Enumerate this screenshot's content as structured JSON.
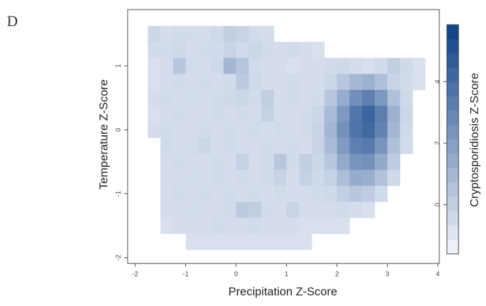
{
  "chart_data": {
    "type": "heatmap",
    "panel_label": "D",
    "x_label": "Precipitation Z-Score",
    "y_label": "Temperature Z-Score",
    "colorbar_label": "Cryptosporidiosis Z-Score",
    "xlim": [
      -2.15,
      4.03
    ],
    "ylim": [
      -2.09,
      1.88
    ],
    "xticks": [
      -2,
      -1,
      0,
      1,
      2,
      3,
      4
    ],
    "yticks": [
      -2,
      -1,
      0,
      1
    ],
    "zlim": [
      -1.6,
      5.85
    ],
    "zticks": [
      0,
      2,
      4
    ],
    "colors": [
      "#f4f6fc",
      "#0b3f86"
    ],
    "cell_size": 0.25,
    "x": [
      -1.625,
      -1.375,
      -1.125,
      -0.875,
      -0.625,
      -0.375,
      -0.125,
      0.125,
      0.375,
      0.625,
      0.875,
      1.125,
      1.375,
      1.625,
      1.875,
      2.125,
      2.375,
      2.625,
      2.875,
      3.125,
      3.375,
      3.625
    ],
    "y": [
      1.5,
      1.25,
      1.0,
      0.75,
      0.5,
      0.25,
      0.0,
      -0.25,
      -0.5,
      -0.75,
      -1.0,
      -1.25,
      -1.5,
      -1.75
    ],
    "z": [
      [
        -0.3,
        -0.6,
        -0.5,
        -0.5,
        -0.6,
        -0.4,
        0.0,
        -0.2,
        -0.5,
        -0.6,
        null,
        null,
        null,
        null,
        null,
        null,
        null,
        null,
        null,
        null,
        null,
        null
      ],
      [
        -0.5,
        -0.5,
        -0.4,
        -0.6,
        -0.5,
        -0.5,
        -0.2,
        -0.5,
        -0.3,
        -0.5,
        -0.6,
        -0.5,
        -0.6,
        -0.7,
        null,
        null,
        null,
        null,
        null,
        null,
        null,
        null
      ],
      [
        -0.7,
        -0.6,
        0.3,
        -0.5,
        -0.6,
        -0.4,
        1.0,
        0.4,
        -0.5,
        -0.6,
        -0.6,
        -0.7,
        -0.6,
        -0.6,
        -0.5,
        -0.4,
        -0.6,
        -0.7,
        -0.5,
        0.0,
        -0.4,
        -0.7
      ],
      [
        -0.7,
        -0.6,
        -0.5,
        -0.6,
        -0.5,
        -0.6,
        -0.5,
        0.2,
        -0.4,
        -0.6,
        -0.6,
        -0.5,
        -0.6,
        -0.6,
        -0.3,
        0.3,
        0.9,
        1.2,
        0.6,
        -0.2,
        -0.5,
        -0.7
      ],
      [
        -0.6,
        -0.5,
        -0.6,
        -0.5,
        -0.6,
        -0.5,
        -0.4,
        -0.3,
        -0.5,
        0.0,
        -0.6,
        -0.5,
        -0.6,
        -0.5,
        0.3,
        1.4,
        2.6,
        3.2,
        2.2,
        0.6,
        -0.4,
        null
      ],
      [
        -0.7,
        -0.6,
        -0.5,
        -0.6,
        -0.6,
        -0.5,
        -0.6,
        -0.5,
        -0.6,
        -0.1,
        -0.6,
        -0.6,
        -0.5,
        -0.3,
        0.8,
        2.2,
        3.6,
        4.3,
        3.3,
        1.2,
        -0.3,
        null
      ],
      [
        -0.6,
        -0.5,
        -0.6,
        -0.6,
        -0.5,
        -0.6,
        -0.5,
        -0.6,
        -0.5,
        -0.6,
        -0.5,
        -0.6,
        -0.5,
        -0.2,
        1.0,
        2.5,
        3.7,
        4.1,
        3.1,
        1.0,
        -0.4,
        null
      ],
      [
        null,
        -0.5,
        -0.6,
        -0.5,
        -0.3,
        -0.6,
        -0.5,
        -0.6,
        -0.6,
        -0.5,
        -0.6,
        -0.5,
        -0.6,
        -0.2,
        0.8,
        2.1,
        3.2,
        3.4,
        2.4,
        0.6,
        -0.5,
        null
      ],
      [
        null,
        -0.6,
        -0.5,
        -0.6,
        -0.6,
        -0.5,
        -0.6,
        -0.1,
        -0.6,
        -0.5,
        0.3,
        -0.5,
        0.0,
        -0.3,
        0.3,
        1.5,
        2.4,
        2.5,
        1.5,
        0.1,
        null,
        null
      ],
      [
        null,
        -0.6,
        -0.6,
        -0.5,
        -0.6,
        -0.5,
        -0.6,
        -0.5,
        -0.6,
        -0.5,
        -0.2,
        -0.6,
        -0.1,
        -0.4,
        -0.1,
        0.7,
        1.4,
        1.3,
        0.5,
        -0.4,
        null,
        null
      ],
      [
        null,
        -0.6,
        -0.5,
        -0.6,
        -0.5,
        -0.6,
        -0.5,
        -0.6,
        -0.5,
        -0.6,
        -0.5,
        -0.6,
        -0.6,
        -0.5,
        -0.4,
        0.0,
        0.3,
        0.1,
        -0.5,
        null,
        null,
        null
      ],
      [
        null,
        -0.6,
        -0.6,
        -0.5,
        -0.6,
        -0.6,
        -0.5,
        0.2,
        0.0,
        -0.5,
        -0.6,
        -0.2,
        -0.6,
        -0.6,
        -0.6,
        -0.5,
        -0.6,
        -0.7,
        null,
        null,
        null,
        null
      ],
      [
        null,
        -0.7,
        -0.6,
        -0.6,
        -0.6,
        -0.5,
        -0.6,
        -0.6,
        -0.5,
        -0.6,
        -0.6,
        -0.6,
        -0.7,
        -0.7,
        -0.7,
        -0.7,
        null,
        null,
        null,
        null,
        null,
        null
      ],
      [
        null,
        null,
        null,
        -0.7,
        -0.7,
        -0.7,
        -0.7,
        -0.7,
        -0.7,
        -0.7,
        -0.7,
        -0.7,
        -0.7,
        null,
        null,
        null,
        null,
        null,
        null,
        null,
        null,
        null
      ]
    ]
  }
}
